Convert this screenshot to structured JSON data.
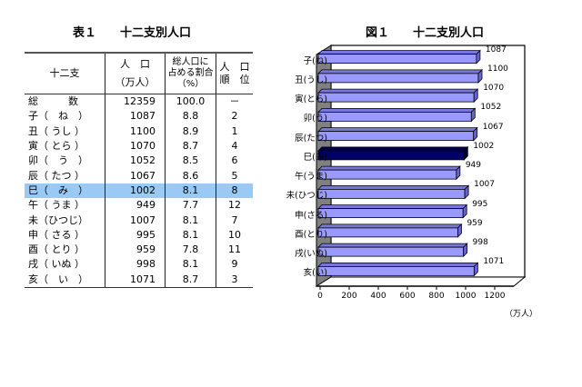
{
  "table": {
    "title": "表１　　十二支別人口",
    "headers": {
      "col1": "十二支",
      "col2_line1": "人　口",
      "col2_line2": "（万人）",
      "col3_line1": "総人口に",
      "col3_line2": "占める割合",
      "col3_line3": "（%）",
      "col4_line1": "人　口",
      "col4_line2": "順　位"
    },
    "total": {
      "name": "総　　　数",
      "population": "12359",
      "share": "100.0",
      "rank": "－"
    },
    "rows": [
      {
        "name": "子（　ね　）",
        "population": "1087",
        "share": "8.8",
        "rank": "2"
      },
      {
        "name": "丑（ うし ）",
        "population": "1100",
        "share": "8.9",
        "rank": "1"
      },
      {
        "name": "寅（ とら ）",
        "population": "1070",
        "share": "8.7",
        "rank": "4"
      },
      {
        "name": "卯（　う　）",
        "population": "1052",
        "share": "8.5",
        "rank": "6"
      },
      {
        "name": "辰（ たつ ）",
        "population": "1067",
        "share": "8.6",
        "rank": "5"
      },
      {
        "name": "巳（　み　）",
        "population": "1002",
        "share": "8.1",
        "rank": "8",
        "highlight": true
      },
      {
        "name": "午（ うま ）",
        "population": "949",
        "share": "7.7",
        "rank": "12"
      },
      {
        "name": "未（ひつじ）",
        "population": "1007",
        "share": "8.1",
        "rank": "7"
      },
      {
        "name": "申（ さる ）",
        "population": "995",
        "share": "8.1",
        "rank": "10"
      },
      {
        "name": "酉（ とり ）",
        "population": "959",
        "share": "7.8",
        "rank": "11"
      },
      {
        "name": "戌（ いぬ ）",
        "population": "998",
        "share": "8.1",
        "rank": "9"
      },
      {
        "name": "亥（　い　）",
        "population": "1071",
        "share": "8.7",
        "rank": "3"
      }
    ],
    "highlight_color": "#99c9f5"
  },
  "chart": {
    "title": "図１　　十二支別人口",
    "unit_label": "（万人）",
    "colors": {
      "bar": "#9999ff",
      "bar_highlight": "#000066",
      "wall": "#808080"
    }
  },
  "chart_data": {
    "type": "bar",
    "orientation": "horizontal",
    "title": "図１　十二支別人口",
    "categories": [
      "子(ね)",
      "丑(うし)",
      "寅(とら)",
      "卯(う)",
      "辰(たつ)",
      "巳(み)",
      "午(うま)",
      "未(ひつじ)",
      "申(さる)",
      "酉(とり)",
      "戌(いぬ)",
      "亥(い)"
    ],
    "values": [
      1087,
      1100,
      1070,
      1052,
      1067,
      1002,
      949,
      1007,
      995,
      959,
      998,
      1071
    ],
    "highlight_index": 5,
    "xlabel": "（万人）",
    "ylabel": "",
    "xlim": [
      0,
      1200
    ],
    "xticks": [
      0,
      200,
      400,
      600,
      800,
      1000,
      1200
    ],
    "grid": false,
    "legend": "none",
    "style": "3d"
  }
}
